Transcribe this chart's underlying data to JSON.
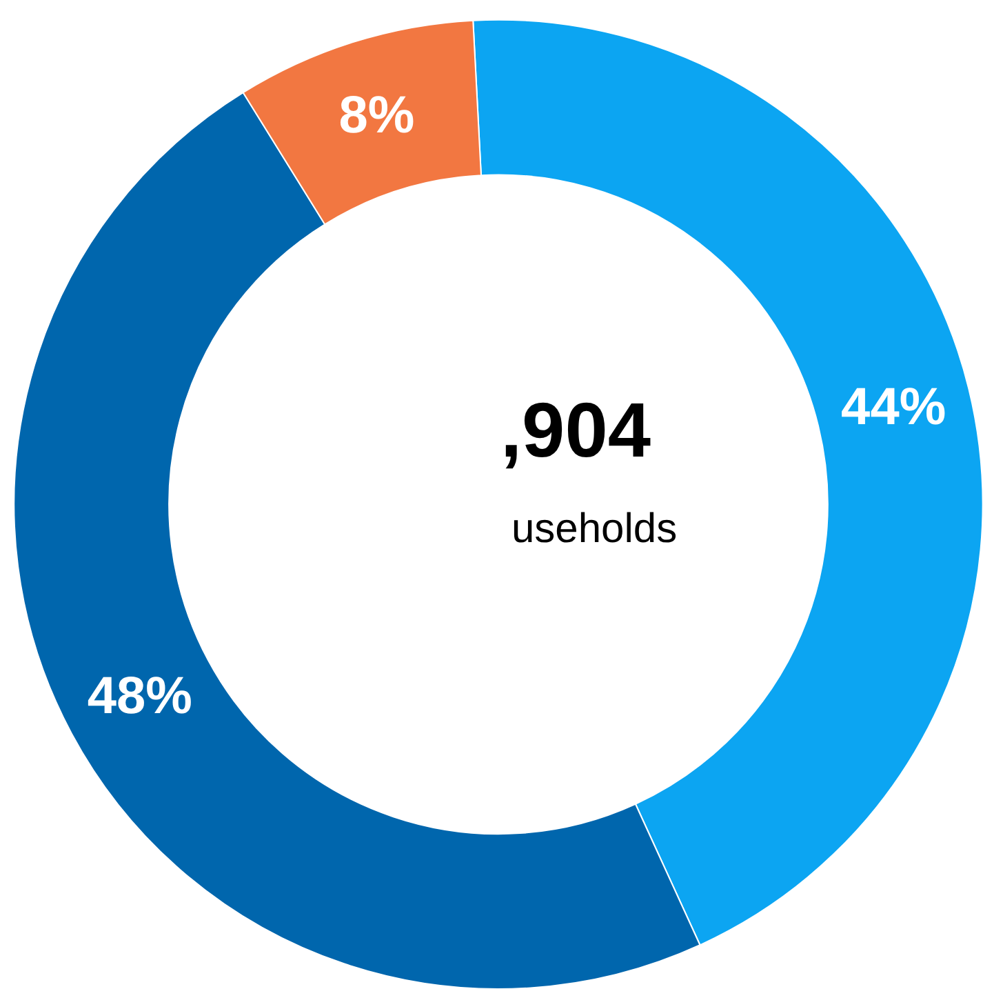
{
  "chart_data": {
    "type": "donut",
    "categories": [
      null,
      null,
      null
    ],
    "values": [
      44,
      48,
      8
    ],
    "colors": [
      "#0ca5f2",
      "#0066ad",
      "#f27741"
    ],
    "value_labels": [
      "44%",
      "48%",
      "8%"
    ],
    "annotations": [
      ",904",
      "useholds"
    ],
    "legend": false
  }
}
